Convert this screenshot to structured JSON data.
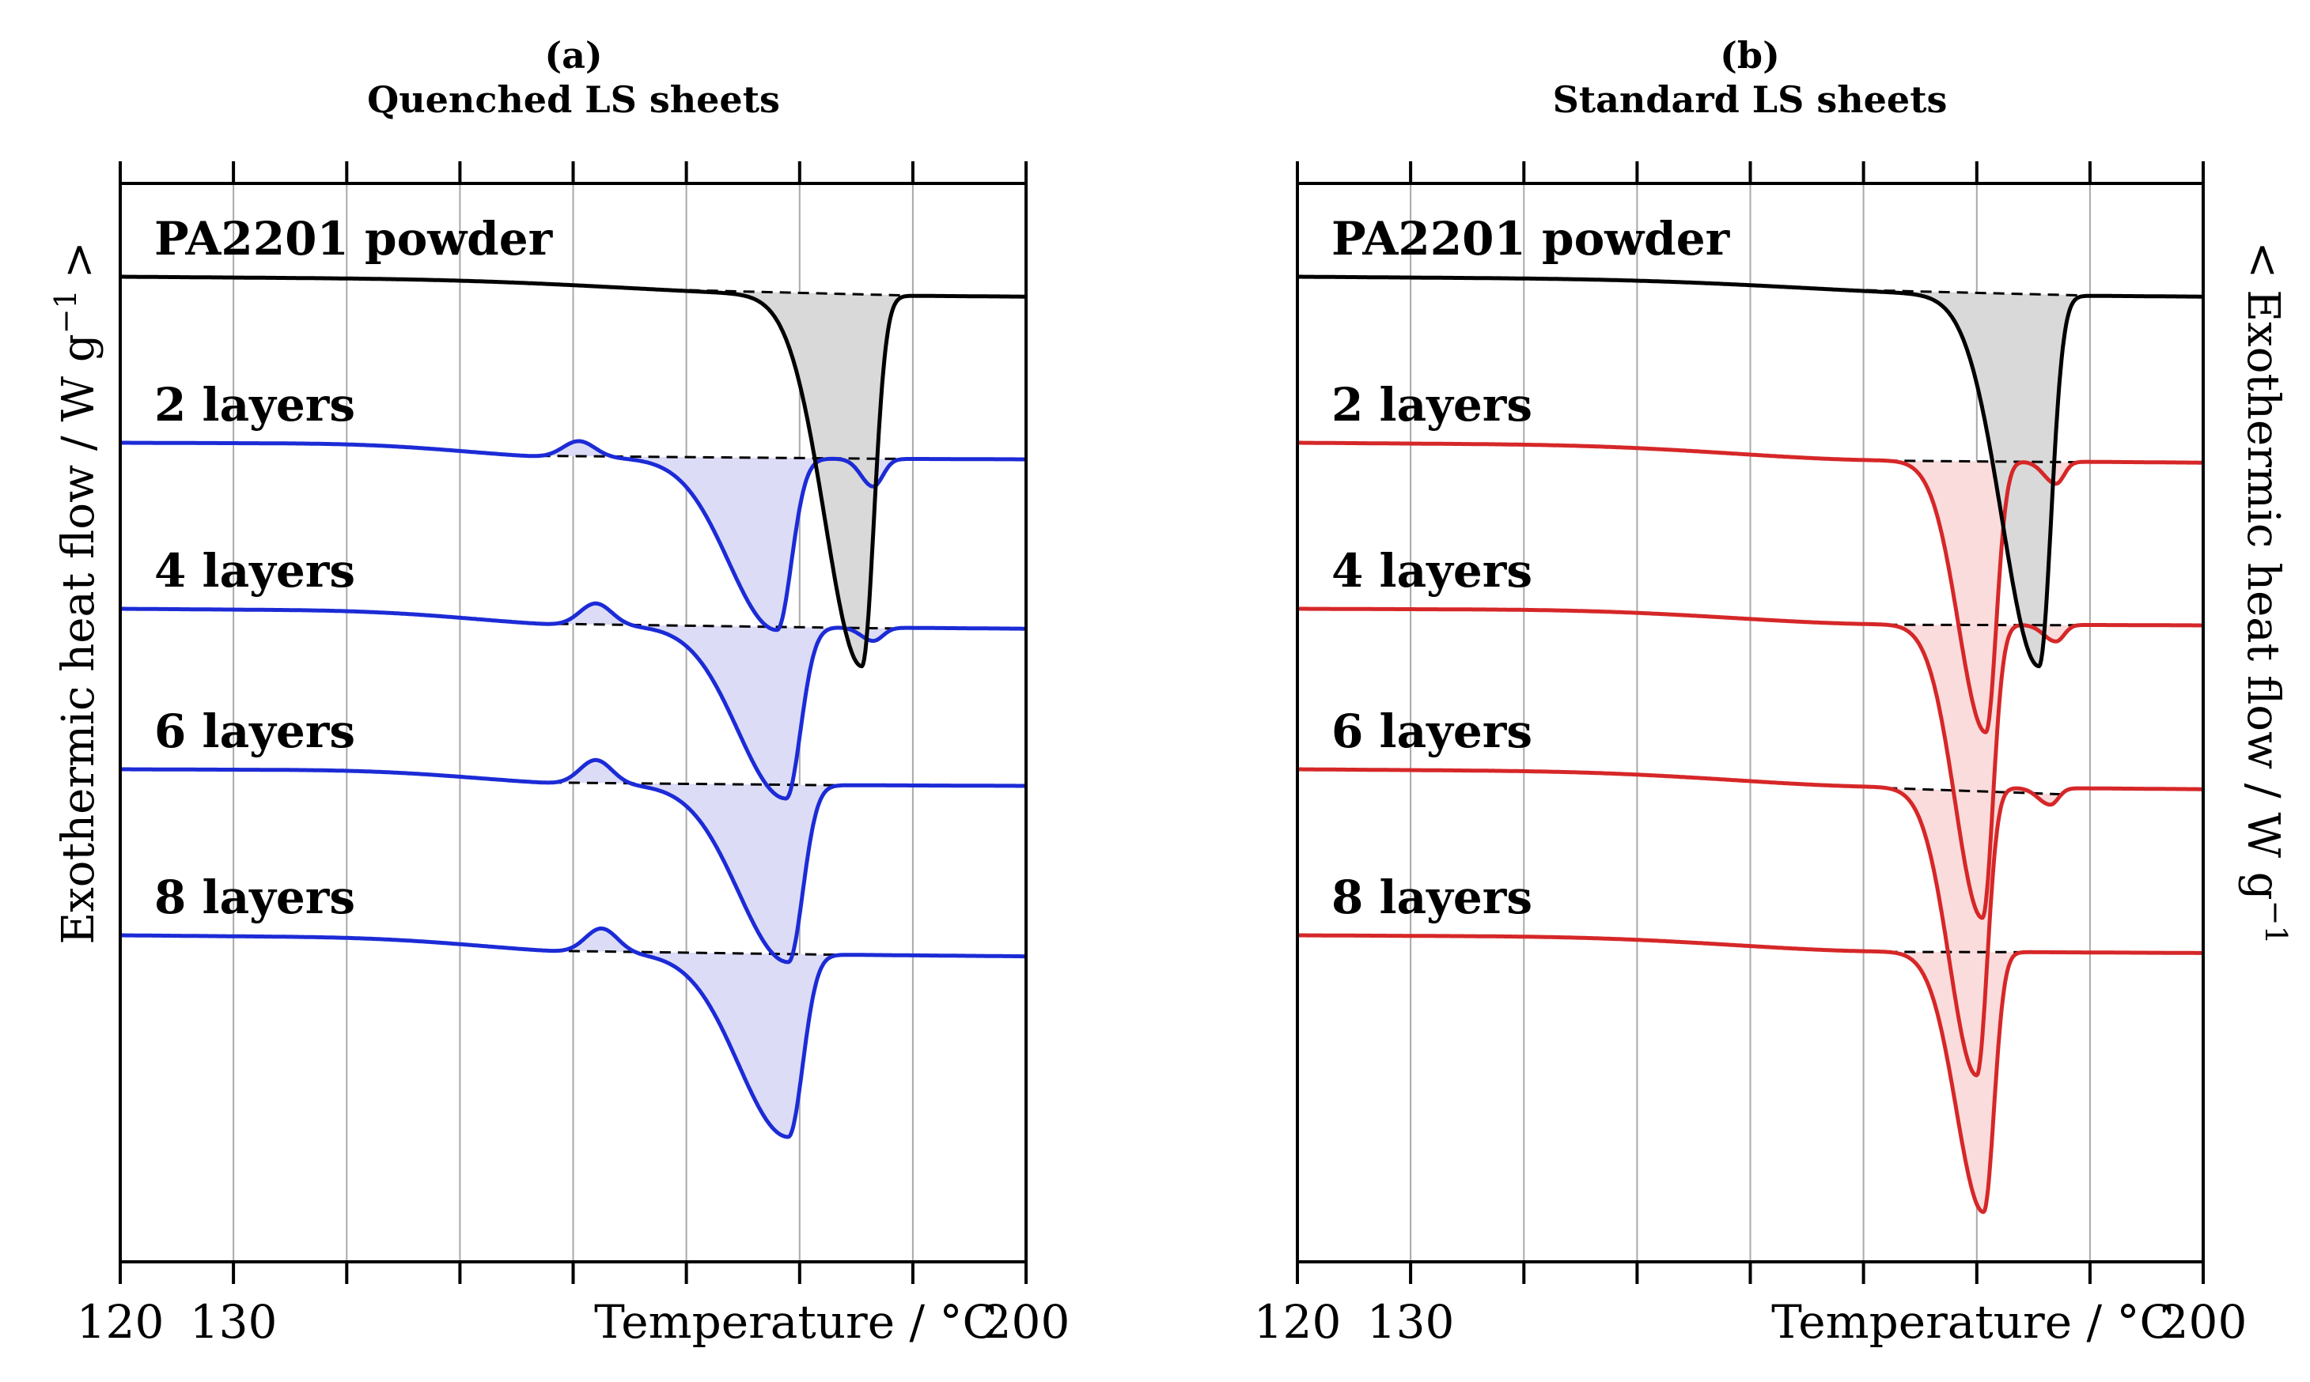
{
  "chart_data": [
    {
      "type": "line",
      "panel": "(a)",
      "title": "Quenched LS sheets",
      "xlabel": "Temperature / °C",
      "ylabel": "Exothermic heat flow / W g",
      "ylabel_exponent": "−1",
      "ylabel_arrow": ">",
      "xlim": [
        120,
        200
      ],
      "x_tick_values": [
        120,
        130,
        140,
        150,
        160,
        170,
        180,
        190,
        200
      ],
      "x_tick_labels": [
        "120",
        "130",
        "200"
      ],
      "series": [
        {
          "name": "PA2201 powder",
          "color": "#000000",
          "fill": "#d9d9d9",
          "offset": 4.75,
          "base_drift": 0.06,
          "start_temp": 167,
          "end_temp": 191.2,
          "onset": 181.5,
          "dips": [
            {
              "t": 185.5,
              "a": 3.35,
              "wl": 4.6,
              "wr": 1.5
            }
          ],
          "bumps": []
        },
        {
          "name": "2 layers",
          "color": "#1c2bd6",
          "fill": "#dcdcf7",
          "offset": 3.25,
          "base_drift": 0.03,
          "start_temp": 157,
          "end_temp": 189.5,
          "onset": 160.5,
          "dips": [
            {
              "t": 178.0,
              "a": 1.55,
              "wl": 6.0,
              "wr": 1.8
            },
            {
              "t": 186.5,
              "a": 0.25,
              "wl": 1.5,
              "wr": 1.2
            }
          ],
          "bumps": [
            {
              "t": 160.5,
              "a": 0.15,
              "w": 2.0
            }
          ]
        },
        {
          "name": "4 layers",
          "color": "#1c2bd6",
          "fill": "#dcdcf7",
          "offset": 1.75,
          "base_drift": 0.06,
          "start_temp": 157,
          "end_temp": 188.5,
          "onset": 161.5,
          "dips": [
            {
              "t": 178.8,
              "a": 1.55,
              "wl": 6.0,
              "wr": 1.8
            },
            {
              "t": 186.5,
              "a": 0.12,
              "wl": 1.5,
              "wr": 1.2
            }
          ],
          "bumps": [
            {
              "t": 162.0,
              "a": 0.2,
              "w": 2.0
            }
          ]
        },
        {
          "name": "6 layers",
          "color": "#1c2bd6",
          "fill": "#dcdcf7",
          "offset": 0.3,
          "base_drift": 0.03,
          "start_temp": 158,
          "end_temp": 184,
          "onset": 162.0,
          "dips": [
            {
              "t": 179.0,
              "a": 1.6,
              "wl": 6.2,
              "wr": 1.8
            }
          ],
          "bumps": [
            {
              "t": 162.0,
              "a": 0.22,
              "w": 2.0
            }
          ]
        },
        {
          "name": "8 layers",
          "color": "#1c2bd6",
          "fill": "#dcdcf7",
          "offset": -1.2,
          "base_drift": 0.07,
          "start_temp": 158,
          "end_temp": 184,
          "onset": 162.5,
          "dips": [
            {
              "t": 179.0,
              "a": 1.65,
              "wl": 6.2,
              "wr": 1.8
            }
          ],
          "bumps": [
            {
              "t": 162.5,
              "a": 0.22,
              "w": 2.0
            }
          ]
        }
      ]
    },
    {
      "type": "line",
      "panel": "(b)",
      "title": "Standard LS sheets",
      "xlabel": "Temperature / °C",
      "ylabel": "Exothermic heat flow / W g",
      "ylabel_exponent": "−1",
      "ylabel_arrow": "<",
      "xlim": [
        120,
        200
      ],
      "x_tick_values": [
        120,
        130,
        140,
        150,
        160,
        170,
        180,
        190,
        200
      ],
      "x_tick_labels": [
        "120",
        "130",
        "200"
      ],
      "series": [
        {
          "name": "PA2201 powder",
          "color": "#000000",
          "fill": "#d9d9d9",
          "offset": 4.75,
          "base_drift": 0.06,
          "start_temp": 167,
          "end_temp": 191.2,
          "onset": 181.5,
          "dips": [
            {
              "t": 185.5,
              "a": 3.35,
              "wl": 4.6,
              "wr": 1.5
            }
          ],
          "bumps": []
        },
        {
          "name": "2 layers",
          "color": "#d62728",
          "fill": "#fadcdc",
          "offset": 3.25,
          "base_drift": 0.06,
          "start_temp": 172,
          "end_temp": 189,
          "onset": 172,
          "dips": [
            {
              "t": 180.8,
              "a": 2.45,
              "wl": 3.4,
              "wr": 1.3
            },
            {
              "t": 187.0,
              "a": 0.2,
              "wl": 1.5,
              "wr": 1.0
            }
          ],
          "bumps": []
        },
        {
          "name": "4 layers",
          "color": "#d62728",
          "fill": "#fadcdc",
          "offset": 1.75,
          "base_drift": 0.03,
          "start_temp": 172,
          "end_temp": 189,
          "onset": 172,
          "dips": [
            {
              "t": 180.5,
              "a": 2.65,
              "wl": 3.4,
              "wr": 1.3
            },
            {
              "t": 187.0,
              "a": 0.15,
              "wl": 1.5,
              "wr": 1.0
            }
          ],
          "bumps": []
        },
        {
          "name": "6 layers",
          "color": "#d62728",
          "fill": "#fadcdc",
          "offset": 0.3,
          "base_drift": 0.06,
          "start_temp": 172,
          "end_temp": 187.5,
          "onset": 172,
          "dips": [
            {
              "t": 180.0,
              "a": 2.6,
              "wl": 3.4,
              "wr": 1.3
            },
            {
              "t": 186.5,
              "a": 0.15,
              "wl": 1.5,
              "wr": 1.0
            }
          ],
          "bumps": []
        },
        {
          "name": "8 layers",
          "color": "#d62728",
          "fill": "#fadcdc",
          "offset": -1.2,
          "base_drift": 0.04,
          "start_temp": 172,
          "end_temp": 186,
          "onset": 172,
          "dips": [
            {
              "t": 180.6,
              "a": 2.35,
              "wl": 3.4,
              "wr": 1.3
            }
          ],
          "bumps": []
        }
      ]
    }
  ]
}
